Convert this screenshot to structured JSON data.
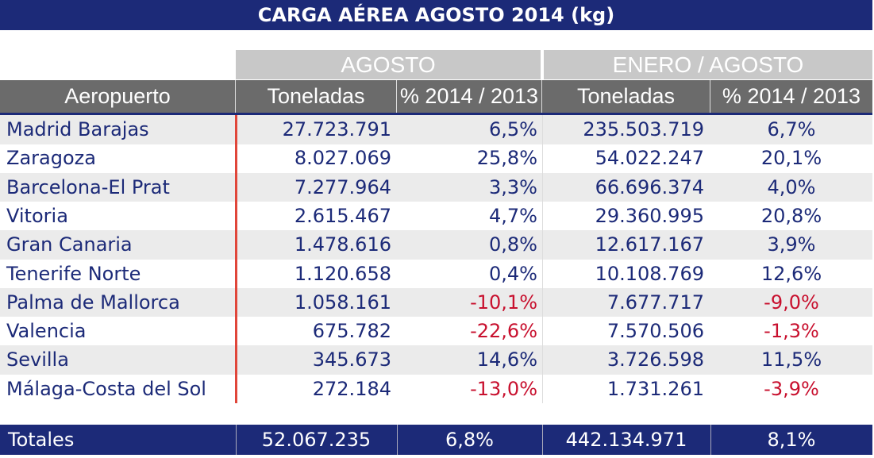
{
  "title": "CARGA AÉREA AGOSTO 2014 (kg)",
  "groups": [
    "AGOSTO",
    "ENERO / AGOSTO"
  ],
  "headers": [
    "Aeropuerto",
    "Toneladas",
    "% 2014 / 2013",
    "Toneladas",
    "% 2014 / 2013"
  ],
  "colors": {
    "navy": "#1c2a78",
    "negative": "#c8102e",
    "header_gray": "#6b6b6b",
    "group_gray": "#c8c8c8"
  },
  "chart_data": {
    "type": "table",
    "title": "CARGA AÉREA AGOSTO 2014 (kg)",
    "columns": [
      "Aeropuerto",
      "Toneladas",
      "% 2014 / 2013",
      "Toneladas",
      "% 2014 / 2013"
    ],
    "rows": [
      [
        "Madrid Barajas",
        "27.723.791",
        "6,5%",
        "235.503.719",
        "6,7%"
      ],
      [
        "Zaragoza",
        "8.027.069",
        "25,8%",
        "54.022.247",
        "20,1%"
      ],
      [
        "Barcelona-El Prat",
        "7.277.964",
        "3,3%",
        "66.696.374",
        "4,0%"
      ],
      [
        "Vitoria",
        "2.615.467",
        "4,7%",
        "29.360.995",
        "20,8%"
      ],
      [
        "Gran Canaria",
        "1.478.616",
        "0,8%",
        "12.617.167",
        "3,9%"
      ],
      [
        "Tenerife Norte",
        "1.120.658",
        "0,4%",
        "10.108.769",
        "12,6%"
      ],
      [
        "Palma de Mallorca",
        "1.058.161",
        "-10,1%",
        "7.677.717",
        "-9,0%"
      ],
      [
        "Valencia",
        "675.782",
        "-22,6%",
        "7.570.506",
        "-1,3%"
      ],
      [
        "Sevilla",
        "345.673",
        "14,6%",
        "3.726.598",
        "11,5%"
      ],
      [
        "Málaga-Costa del Sol",
        "272.184",
        "-13,0%",
        "1.731.261",
        "-3,9%"
      ]
    ],
    "totals": [
      "Totales",
      "52.067.235",
      "6,8%",
      "442.134.971",
      "8,1%"
    ]
  }
}
